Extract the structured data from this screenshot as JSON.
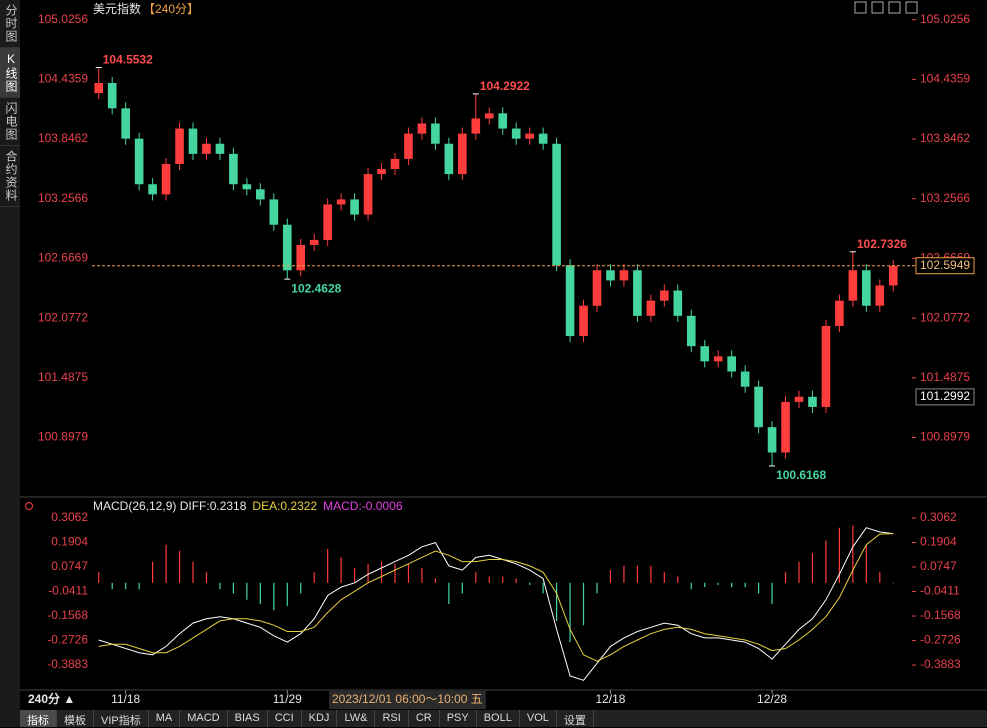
{
  "sidebar": [
    "分时图",
    "K线图",
    "闪电图",
    "合约资料"
  ],
  "toolbar": [
    "指标",
    "模板",
    "VIP指标",
    "MA",
    "MACD",
    "BIAS",
    "CCI",
    "KDJ",
    "LW&",
    "RSI",
    "CR",
    "PSY",
    "BOLL",
    "VOL",
    "设置"
  ],
  "period_label": "240分 ▲",
  "cursor_time": "2023/12/01 06:00～10:00 五",
  "chart_data": [
    {
      "type": "candlestick",
      "title": "美元指数",
      "subtitle": "【240分】",
      "up_color": "#ff3d3d",
      "down_color": "#45d6a0",
      "categories": [
        null,
        null,
        "11/18",
        null,
        null,
        null,
        null,
        null,
        null,
        null,
        null,
        null,
        null,
        null,
        "11/29",
        null,
        null,
        null,
        null,
        null,
        null,
        null,
        null,
        null,
        null,
        null,
        null,
        null,
        null,
        null,
        null,
        null,
        null,
        null,
        null,
        null,
        null,
        null,
        "12/18",
        null,
        null,
        null,
        null,
        null,
        null,
        null,
        null,
        null,
        null,
        null,
        "12/28",
        null,
        null,
        null,
        null,
        null,
        null,
        null,
        null,
        null
      ],
      "open": [
        104.3,
        104.4,
        104.15,
        103.85,
        103.4,
        103.3,
        103.6,
        103.95,
        103.7,
        103.8,
        103.7,
        103.4,
        103.35,
        103.25,
        103.0,
        102.55,
        102.8,
        102.85,
        103.2,
        103.25,
        103.1,
        103.5,
        103.55,
        103.65,
        103.9,
        104.0,
        103.8,
        103.5,
        103.9,
        104.05,
        104.1,
        103.95,
        103.85,
        103.9,
        103.8,
        102.6,
        101.9,
        102.2,
        102.55,
        102.45,
        102.55,
        102.1,
        102.25,
        102.35,
        102.1,
        101.8,
        101.65,
        101.7,
        101.55,
        101.4,
        101.0,
        100.75,
        101.25,
        101.3,
        101.2,
        102.0,
        102.25,
        102.55,
        102.2,
        102.4
      ],
      "high": [
        104.5532,
        104.46,
        104.21,
        103.91,
        103.46,
        103.66,
        104.01,
        104.01,
        103.86,
        103.86,
        103.76,
        103.46,
        103.41,
        103.31,
        103.06,
        102.86,
        102.91,
        103.26,
        103.31,
        103.31,
        103.56,
        103.61,
        103.71,
        103.96,
        104.06,
        104.06,
        103.86,
        103.96,
        104.2922,
        104.16,
        104.16,
        104.01,
        103.96,
        103.96,
        103.86,
        102.66,
        102.26,
        102.61,
        102.61,
        102.61,
        102.61,
        102.31,
        102.41,
        102.41,
        102.16,
        101.86,
        101.76,
        101.76,
        101.61,
        101.46,
        101.06,
        101.31,
        101.36,
        101.36,
        102.06,
        102.31,
        102.7326,
        102.61,
        102.46,
        102.65
      ],
      "low": [
        104.24,
        104.09,
        103.79,
        103.34,
        103.24,
        103.24,
        103.54,
        103.64,
        103.64,
        103.64,
        103.34,
        103.29,
        103.19,
        102.94,
        102.4628,
        102.49,
        102.74,
        102.79,
        103.14,
        103.04,
        103.04,
        103.44,
        103.49,
        103.59,
        103.84,
        103.74,
        103.44,
        103.44,
        103.84,
        103.99,
        103.89,
        103.79,
        103.79,
        103.74,
        102.54,
        101.84,
        101.84,
        102.14,
        102.39,
        102.39,
        102.04,
        102.04,
        102.19,
        102.04,
        101.74,
        101.59,
        101.59,
        101.49,
        101.34,
        100.94,
        100.6168,
        100.69,
        101.19,
        101.14,
        101.14,
        101.94,
        102.19,
        102.14,
        102.14,
        102.34
      ],
      "close": [
        104.4,
        104.15,
        103.85,
        103.4,
        103.3,
        103.6,
        103.95,
        103.7,
        103.8,
        103.7,
        103.4,
        103.35,
        103.25,
        103.0,
        102.55,
        102.8,
        102.85,
        103.2,
        103.25,
        103.1,
        103.5,
        103.55,
        103.65,
        103.9,
        104.0,
        103.8,
        103.5,
        103.9,
        104.05,
        104.1,
        103.95,
        103.85,
        103.9,
        103.8,
        102.6,
        101.9,
        102.2,
        102.55,
        102.45,
        102.55,
        102.1,
        102.25,
        102.35,
        102.1,
        101.8,
        101.65,
        101.7,
        101.55,
        101.4,
        101.0,
        100.75,
        101.25,
        101.3,
        101.2,
        102.0,
        102.25,
        102.55,
        102.2,
        102.4,
        102.5949
      ],
      "ylim": [
        100.33,
        105.22
      ],
      "yticks": [
        105.0256,
        104.4359,
        103.8462,
        103.2566,
        102.6669,
        102.0772,
        101.4875,
        100.8979
      ],
      "last_price": 102.5949,
      "last_color": "#f0a040",
      "cursor_price": 101.2992
    },
    {
      "type": "macd",
      "legend": [
        "MACD(26,12,9) DIFF:0.2318",
        "DEA:0.2322",
        "MACD:-0.0006"
      ],
      "legend_colors": [
        "#e8e8e8",
        "#e8d040",
        "#e040e0"
      ],
      "diff_color": "#ffffff",
      "dea_color": "#e8d040",
      "up_color": "#ff3d3d",
      "down_color": "#45d6a0",
      "diff": [
        -0.27,
        -0.29,
        -0.31,
        -0.33,
        -0.34,
        -0.3,
        -0.24,
        -0.19,
        -0.17,
        -0.16,
        -0.17,
        -0.19,
        -0.21,
        -0.25,
        -0.28,
        -0.24,
        -0.17,
        -0.06,
        -0.02,
        0.0,
        0.04,
        0.07,
        0.1,
        0.13,
        0.17,
        0.19,
        0.08,
        0.06,
        0.12,
        0.13,
        0.11,
        0.09,
        0.06,
        0.02,
        -0.22,
        -0.44,
        -0.46,
        -0.38,
        -0.3,
        -0.26,
        -0.23,
        -0.21,
        -0.19,
        -0.2,
        -0.24,
        -0.26,
        -0.26,
        -0.27,
        -0.28,
        -0.31,
        -0.36,
        -0.29,
        -0.22,
        -0.17,
        -0.08,
        0.04,
        0.17,
        0.26,
        0.24,
        0.2318
      ],
      "dea": [
        -0.3,
        -0.29,
        -0.29,
        -0.31,
        -0.33,
        -0.33,
        -0.3,
        -0.26,
        -0.22,
        -0.18,
        -0.17,
        -0.17,
        -0.18,
        -0.2,
        -0.23,
        -0.23,
        -0.21,
        -0.14,
        -0.08,
        -0.04,
        0.0,
        0.03,
        0.06,
        0.09,
        0.12,
        0.15,
        0.13,
        0.1,
        0.1,
        0.11,
        0.11,
        0.1,
        0.08,
        0.05,
        -0.05,
        -0.22,
        -0.34,
        -0.37,
        -0.34,
        -0.3,
        -0.27,
        -0.24,
        -0.22,
        -0.21,
        -0.22,
        -0.24,
        -0.25,
        -0.26,
        -0.27,
        -0.29,
        -0.32,
        -0.31,
        -0.27,
        -0.22,
        -0.16,
        -0.07,
        0.06,
        0.18,
        0.23,
        0.2322
      ],
      "hist": [
        0.05,
        -0.03,
        -0.03,
        -0.03,
        0.1,
        0.18,
        0.15,
        0.1,
        0.05,
        -0.03,
        -0.05,
        -0.08,
        -0.1,
        -0.13,
        -0.11,
        -0.05,
        0.05,
        0.16,
        0.12,
        0.07,
        0.09,
        0.1,
        0.09,
        0.09,
        0.07,
        0.02,
        -0.1,
        -0.05,
        0.05,
        0.03,
        0.03,
        0.02,
        -0.01,
        -0.05,
        -0.18,
        -0.28,
        -0.2,
        -0.05,
        0.06,
        0.08,
        0.08,
        0.08,
        0.05,
        0.03,
        -0.03,
        -0.02,
        -0.01,
        -0.02,
        -0.02,
        -0.05,
        -0.1,
        0.05,
        0.1,
        0.14,
        0.2,
        0.26,
        0.27,
        0.18,
        0.05,
        -0.0006
      ],
      "ylim": [
        -0.506,
        0.391
      ],
      "yticks": [
        0.3062,
        0.1904,
        0.0747,
        -0.0411,
        -0.1568,
        -0.2726,
        -0.3883
      ]
    }
  ]
}
